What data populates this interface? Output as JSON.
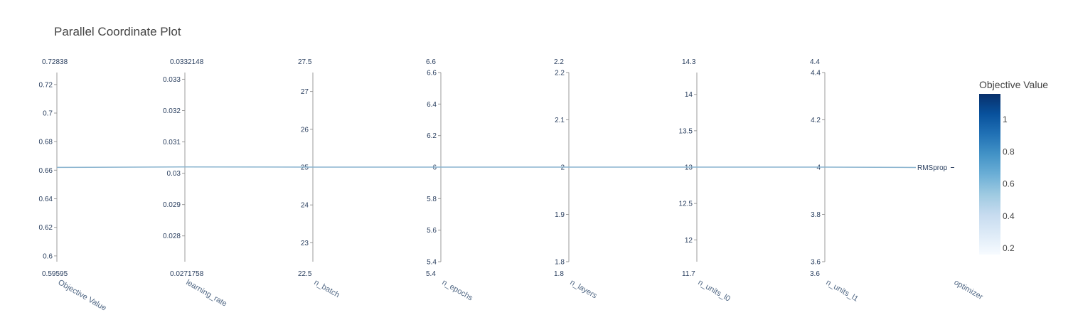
{
  "chart_data": {
    "type": "parallel_coordinates",
    "title": "Parallel Coordinate Plot",
    "colorbar": {
      "title": "Objective Value",
      "colorscale": "Blues",
      "ticks": [
        "0.2",
        "0.4",
        "0.6",
        "0.8",
        "1"
      ],
      "range": [
        0.16,
        1.16
      ]
    },
    "axes": [
      {
        "label": "Objective Value",
        "max_label": "0.72838",
        "min_label": "0.59595",
        "range": [
          0.59595,
          0.72838
        ],
        "ticks": [
          0.6,
          0.62,
          0.64,
          0.66,
          0.68,
          0.7,
          0.72
        ],
        "tick_labels": [
          "0.6",
          "0.62",
          "0.64",
          "0.66",
          "0.68",
          "0.7",
          "0.72"
        ],
        "value": 0.662
      },
      {
        "label": "learning_rate",
        "max_label": "0.0332148",
        "min_label": "0.0271758",
        "range": [
          0.0271758,
          0.0332148
        ],
        "ticks": [
          0.028,
          0.029,
          0.03,
          0.031,
          0.032,
          0.033
        ],
        "tick_labels": [
          "0.028",
          "0.029",
          "0.03",
          "0.031",
          "0.032",
          "0.033"
        ],
        "value": 0.0302
      },
      {
        "label": "n_batch",
        "max_label": "27.5",
        "min_label": "22.5",
        "range": [
          22.5,
          27.5
        ],
        "ticks": [
          23,
          24,
          25,
          26,
          27
        ],
        "tick_labels": [
          "23",
          "24",
          "25",
          "26",
          "27"
        ],
        "value": 25
      },
      {
        "label": "n_epochs",
        "max_label": "6.6",
        "min_label": "5.4",
        "range": [
          5.4,
          6.6
        ],
        "ticks": [
          5.4,
          5.6,
          5.8,
          6,
          6.2,
          6.4,
          6.6
        ],
        "tick_labels": [
          "5.4",
          "5.6",
          "5.8",
          "6",
          "6.2",
          "6.4",
          "6.6"
        ],
        "value": 6
      },
      {
        "label": "n_layers",
        "max_label": "2.2",
        "min_label": "1.8",
        "range": [
          1.8,
          2.2
        ],
        "ticks": [
          1.8,
          1.9,
          2,
          2.1,
          2.2
        ],
        "tick_labels": [
          "1.8",
          "1.9",
          "2",
          "2.1",
          "2.2"
        ],
        "value": 2
      },
      {
        "label": "n_units_l0",
        "max_label": "14.3",
        "min_label": "11.7",
        "range": [
          11.7,
          14.3
        ],
        "ticks": [
          12,
          12.5,
          13,
          13.5,
          14
        ],
        "tick_labels": [
          "12",
          "12.5",
          "13",
          "13.5",
          "14"
        ],
        "value": 13
      },
      {
        "label": "n_units_l1",
        "max_label": "4.4",
        "min_label": "3.6",
        "range": [
          3.6,
          4.4
        ],
        "ticks": [
          3.6,
          3.8,
          4,
          4.2,
          4.4
        ],
        "tick_labels": [
          "3.6",
          "3.8",
          "4",
          "4.2",
          "4.4"
        ],
        "value": 4
      },
      {
        "label": "optimizer",
        "categorical": true,
        "categories": [
          "RMSprop"
        ],
        "value": "RMSprop"
      }
    ],
    "line_color": "#8ab4cf",
    "line_objective_value": 0.662
  }
}
